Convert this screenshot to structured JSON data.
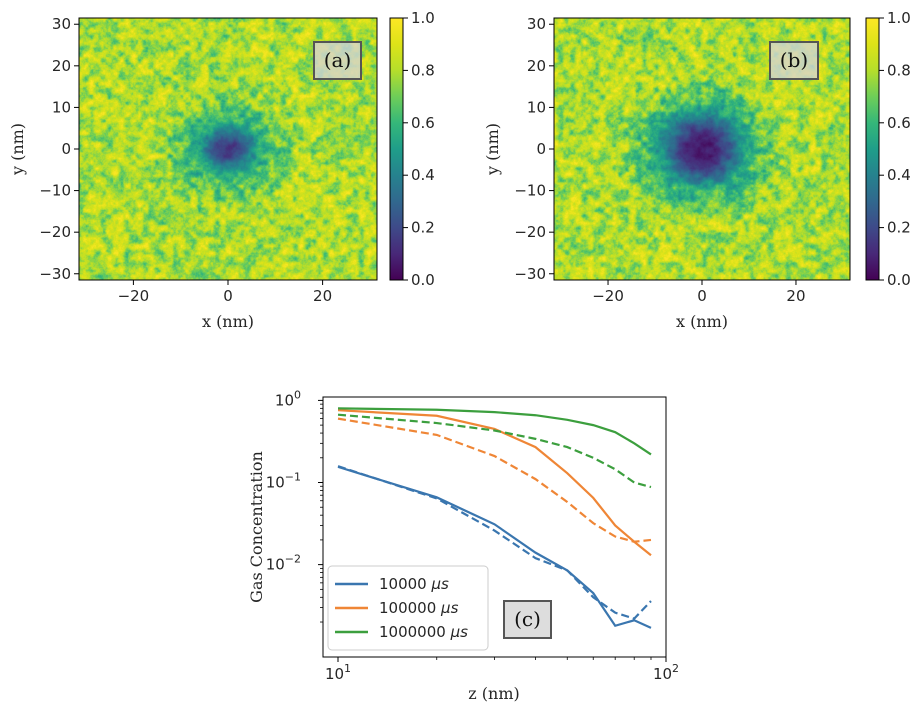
{
  "chart_data": [
    {
      "type": "heatmap",
      "panel_label": "(a)",
      "xlabel": "x (nm)",
      "ylabel": "y (nm)",
      "xlim": [
        -31.5,
        31.5
      ],
      "ylim": [
        -31.5,
        31.5
      ],
      "xticks": [
        -20,
        0,
        20
      ],
      "yticks": [
        -30,
        -20,
        -10,
        0,
        10,
        20,
        30
      ],
      "xtick_labels": [
        "−20",
        "0",
        "20"
      ],
      "ytick_labels": [
        "−30",
        "−20",
        "−10",
        "0",
        "10",
        "20",
        "30"
      ],
      "colormap": "viridis",
      "clim": [
        0.0,
        1.0
      ],
      "colorbar_ticks": [
        "0.0",
        "0.2",
        "0.4",
        "0.6",
        "0.8",
        "1.0"
      ],
      "center": [
        0,
        0
      ],
      "core_radius_nm": 5,
      "depletion_radius_nm": 10,
      "min_value": 0.05,
      "background_mean": 0.8
    },
    {
      "type": "heatmap",
      "panel_label": "(b)",
      "xlabel": "x (nm)",
      "ylabel": "y (nm)",
      "xlim": [
        -31.5,
        31.5
      ],
      "ylim": [
        -31.5,
        31.5
      ],
      "xticks": [
        -20,
        0,
        20
      ],
      "yticks": [
        -30,
        -20,
        -10,
        0,
        10,
        20,
        30
      ],
      "xtick_labels": [
        "−20",
        "0",
        "20"
      ],
      "ytick_labels": [
        "−30",
        "−20",
        "−10",
        "0",
        "10",
        "20",
        "30"
      ],
      "colormap": "viridis",
      "clim": [
        0.0,
        1.0
      ],
      "colorbar_ticks": [
        "0.0",
        "0.2",
        "0.4",
        "0.6",
        "0.8",
        "1.0"
      ],
      "center": [
        0,
        0
      ],
      "core_radius_nm": 8,
      "depletion_radius_nm": 13,
      "min_value": 0.03,
      "background_mean": 0.8
    },
    {
      "type": "line",
      "panel_label": "(c)",
      "xlabel": "z (nm)",
      "ylabel": "Gas Concentration",
      "xscale": "log",
      "yscale": "log",
      "xlim": [
        9,
        100
      ],
      "ylim": [
        0.00075,
        1.1
      ],
      "xtick_labels": [
        "10",
        "10"
      ],
      "xtick_exps": [
        "1",
        "2"
      ],
      "ytick_labels": [
        "10",
        "10",
        "10"
      ],
      "ytick_exps": [
        "0",
        "−1",
        "−2"
      ],
      "legend_position": "lower-left",
      "x": [
        10,
        20,
        30,
        40,
        50,
        60,
        70,
        80,
        90
      ],
      "series": [
        {
          "name": "10000",
          "unit": "μs",
          "color": "#3a76af",
          "style": "solid",
          "values": [
            0.155,
            0.066,
            0.031,
            0.014,
            0.0085,
            0.0045,
            0.0018,
            0.0021,
            0.0017
          ]
        },
        {
          "name": "10000",
          "unit": "μs",
          "color": "#3a76af",
          "style": "dashed",
          "values": [
            0.158,
            0.064,
            0.026,
            0.012,
            0.0085,
            0.004,
            0.0026,
            0.0022,
            0.0036
          ]
        },
        {
          "name": "100000",
          "unit": "μs",
          "color": "#ef8636",
          "style": "solid",
          "values": [
            0.76,
            0.65,
            0.45,
            0.27,
            0.13,
            0.065,
            0.03,
            0.019,
            0.013
          ]
        },
        {
          "name": "100000",
          "unit": "μs",
          "color": "#ef8636",
          "style": "dashed",
          "values": [
            0.6,
            0.38,
            0.21,
            0.11,
            0.058,
            0.032,
            0.022,
            0.019,
            0.02
          ]
        },
        {
          "name": "1000000",
          "unit": "μs",
          "color": "#3c9f3e",
          "style": "solid",
          "values": [
            0.8,
            0.77,
            0.72,
            0.66,
            0.58,
            0.5,
            0.41,
            0.3,
            0.22
          ]
        },
        {
          "name": "1000000",
          "unit": "μs",
          "color": "#3c9f3e",
          "style": "dashed",
          "values": [
            0.67,
            0.53,
            0.43,
            0.34,
            0.27,
            0.2,
            0.145,
            0.1,
            0.088
          ]
        }
      ],
      "legend": [
        {
          "label": "10000",
          "unit": "μs",
          "color": "#3a76af"
        },
        {
          "label": "100000",
          "unit": "μs",
          "color": "#ef8636"
        },
        {
          "label": "1000000",
          "unit": "μs",
          "color": "#3c9f3e"
        }
      ]
    }
  ]
}
